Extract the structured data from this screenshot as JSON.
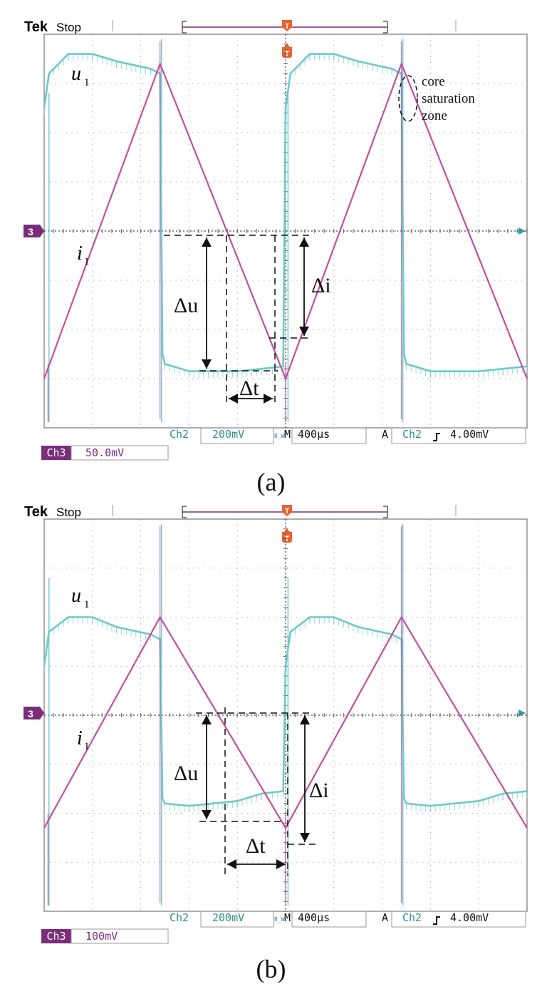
{
  "panels": [
    {
      "caption": "(a)",
      "header": {
        "brand": "Tek",
        "status": "Stop"
      },
      "bottom_bar": {
        "channel": "Ch2",
        "volts_div": "200mV",
        "bw_mark": "B_W",
        "time_prefix": "M",
        "time_div": "400µs",
        "trigger_prefix": "A",
        "trigger_channel": "Ch2",
        "trigger_level": "4.00mV"
      },
      "ch3_label": "Ch3",
      "ch3_scale": "50.0mV",
      "channel_marker": "3",
      "trace_labels": {
        "u": "u",
        "u_sub": "1",
        "i": "i",
        "i_sub": "1"
      },
      "annotations": {
        "du": "Δu",
        "dt": "Δt",
        "di": "Δi",
        "zone": [
          "core",
          "saturation",
          "zone"
        ]
      },
      "colors": {
        "u_trace": "#6ec9cc",
        "i_trace": "#c24fa4",
        "marker": "#7b2d7a",
        "trigger": "#e8622b"
      },
      "chart_data": {
        "type": "line",
        "xlabel": "",
        "ylabel": "",
        "x_divisions": 10,
        "y_divisions": 8,
        "x_unit_per_div": "400µs",
        "series": [
          {
            "name": "u1",
            "channel": "Ch2",
            "x": [
              0.0,
              0.1,
              0.5,
              1.0,
              1.5,
              2.2,
              2.4,
              2.45,
              2.5,
              3.0,
              4.0,
              4.5,
              4.95,
              5.0,
              5.1,
              5.5,
              6.0,
              6.5,
              7.2,
              7.4,
              7.45,
              7.5,
              8.0,
              9.0,
              9.5,
              10.0
            ],
            "y": [
              2.5,
              3.2,
              3.6,
              3.6,
              3.45,
              3.3,
              3.2,
              -2.5,
              -2.7,
              -2.85,
              -2.85,
              -2.8,
              -2.75,
              2.5,
              3.2,
              3.6,
              3.6,
              3.45,
              3.3,
              3.2,
              -2.5,
              -2.7,
              -2.85,
              -2.85,
              -2.8,
              -2.75
            ]
          },
          {
            "name": "i1",
            "channel": "Ch3",
            "x": [
              0.0,
              2.4,
              5.0,
              7.4,
              10.0
            ],
            "y": [
              -3.0,
              3.4,
              -3.0,
              3.4,
              -3.0
            ]
          }
        ]
      }
    },
    {
      "caption": "(b)",
      "header": {
        "brand": "Tek",
        "status": "Stop"
      },
      "bottom_bar": {
        "channel": "Ch2",
        "volts_div": "200mV",
        "bw_mark": "B_W",
        "time_prefix": "M",
        "time_div": "400µs",
        "trigger_prefix": "A",
        "trigger_channel": "Ch2",
        "trigger_level": "4.00mV"
      },
      "ch3_label": "Ch3",
      "ch3_scale": "100mV",
      "channel_marker": "3",
      "trace_labels": {
        "u": "u",
        "u_sub": "1",
        "i": "i",
        "i_sub": "1"
      },
      "annotations": {
        "du": "Δu",
        "dt": "Δt",
        "di": "Δi"
      },
      "colors": {
        "u_trace": "#6ec9cc",
        "i_trace": "#c24fa4",
        "marker": "#7b2d7a",
        "trigger": "#e8622b"
      },
      "chart_data": {
        "type": "line",
        "xlabel": "",
        "ylabel": "",
        "x_divisions": 10,
        "y_divisions": 8,
        "x_unit_per_div": "400µs",
        "series": [
          {
            "name": "u1",
            "channel": "Ch2",
            "x": [
              0.0,
              0.1,
              0.5,
              1.0,
              1.5,
              2.2,
              2.4,
              2.45,
              2.5,
              3.0,
              4.0,
              4.5,
              4.95,
              5.0,
              5.1,
              5.5,
              6.0,
              6.5,
              7.2,
              7.4,
              7.45,
              7.5,
              8.0,
              9.0,
              9.5,
              10.0
            ],
            "y": [
              1.0,
              1.7,
              2.0,
              2.0,
              1.8,
              1.65,
              1.55,
              -1.7,
              -1.8,
              -1.85,
              -1.75,
              -1.6,
              -1.55,
              1.0,
              1.7,
              2.0,
              2.0,
              1.8,
              1.65,
              1.55,
              -1.7,
              -1.8,
              -1.85,
              -1.75,
              -1.6,
              -1.55
            ]
          },
          {
            "name": "i1",
            "channel": "Ch3",
            "x": [
              0.0,
              2.4,
              5.0,
              7.4,
              10.0
            ],
            "y": [
              -2.3,
              2.0,
              -2.3,
              2.0,
              -2.3
            ]
          }
        ]
      }
    }
  ]
}
